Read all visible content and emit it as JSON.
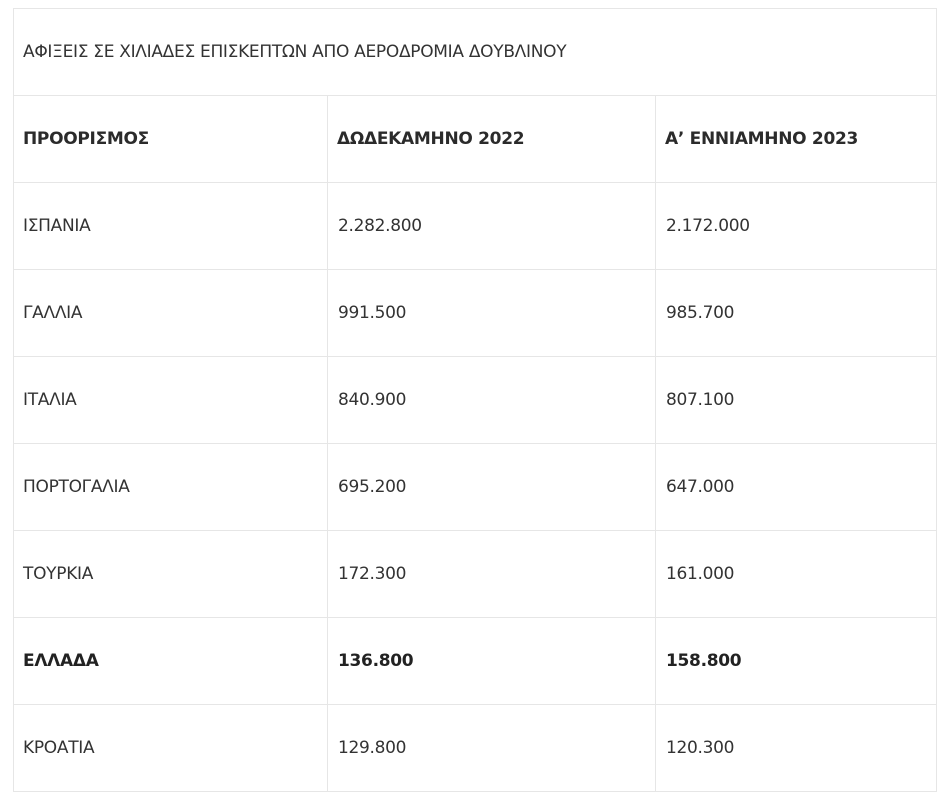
{
  "table": {
    "title": "ΑΦΙΞΕΙΣ ΣΕ ΧΙΛΙΑΔΕΣ ΕΠΙΣΚΕΠΤΩΝ ΑΠΟ ΑΕΡΟΔΡΟΜΙΑ ΔΟΥΒΛΙΝΟΥ",
    "header": [
      "ΠΡΟΟΡΙΣΜΟΣ",
      "ΔΩΔΕΚΑΜΗΝΟ 2022",
      "Α’ ΕΝΝΙΑΜΗΝΟ 2023"
    ],
    "rows": [
      [
        "ΙΣΠΑΝΙΑ",
        "2.282.800",
        "2.172.000"
      ],
      [
        "ΓΑΛΛΙΑ",
        "991.500",
        "985.700"
      ],
      [
        "ΙΤΑΛΙΑ",
        "840.900",
        "807.100"
      ],
      [
        "ΠΟΡΤΟΓΑΛΙΑ",
        "695.200",
        "647.000"
      ],
      [
        "ΤΟΥΡΚΙΑ",
        "172.300",
        "161.000"
      ],
      [
        "ΕΛΛΑΔΑ",
        "136.800",
        "158.800"
      ],
      [
        "ΚΡΟΑΤΙΑ",
        "129.800",
        "120.300"
      ]
    ]
  }
}
